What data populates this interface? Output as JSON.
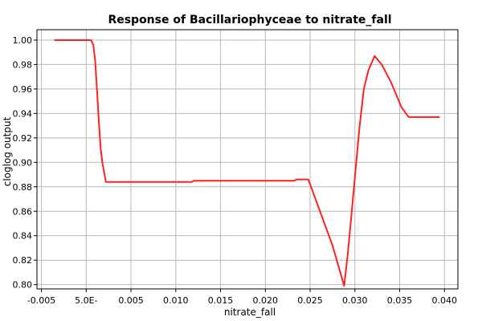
{
  "chart_data": {
    "type": "line",
    "title": "Response of Bacillariophyceae to nitrate_fall",
    "xlabel": "nitrate_fall",
    "ylabel": "cloglog output",
    "xlim": [
      -0.0055,
      0.0415
    ],
    "ylim": [
      0.7965,
      1.0085
    ],
    "x_ticks": [
      -0.005,
      0.0,
      0.005,
      0.01,
      0.015,
      0.02,
      0.025,
      0.03,
      0.035,
      0.04
    ],
    "x_tick_labels": [
      "-0.005",
      "5.0E-",
      "0.005",
      "0.010",
      "0.015",
      "0.020",
      "0.025",
      "0.030",
      "0.035",
      "0.040"
    ],
    "y_ticks": [
      0.8,
      0.82,
      0.84,
      0.86,
      0.88,
      0.9,
      0.92,
      0.94,
      0.96,
      0.98,
      1.0
    ],
    "y_tick_labels": [
      "0.80",
      "0.82",
      "0.84",
      "0.86",
      "0.88",
      "0.90",
      "0.92",
      "0.94",
      "0.96",
      "0.98",
      "1.00"
    ],
    "grid": true,
    "series": [
      {
        "color": "#ff2020",
        "x": [
          -0.0035,
          0.0005,
          0.0006,
          0.0008,
          0.001,
          0.0012,
          0.0014,
          0.0016,
          0.0018,
          0.0022,
          0.0028,
          0.005,
          0.008,
          0.0118,
          0.012,
          0.015,
          0.02,
          0.0232,
          0.0235,
          0.0248,
          0.026,
          0.0275,
          0.0288,
          0.0292,
          0.0295,
          0.03,
          0.0305,
          0.031,
          0.0315,
          0.0322,
          0.033,
          0.034,
          0.0352,
          0.036,
          0.0394
        ],
        "y": [
          1.0,
          1.0,
          0.999,
          0.996,
          0.983,
          0.96,
          0.935,
          0.912,
          0.9,
          0.884,
          0.884,
          0.884,
          0.884,
          0.884,
          0.885,
          0.885,
          0.885,
          0.885,
          0.886,
          0.886,
          0.862,
          0.832,
          0.799,
          0.825,
          0.848,
          0.888,
          0.928,
          0.96,
          0.975,
          0.987,
          0.98,
          0.966,
          0.945,
          0.937,
          0.937
        ]
      }
    ]
  }
}
